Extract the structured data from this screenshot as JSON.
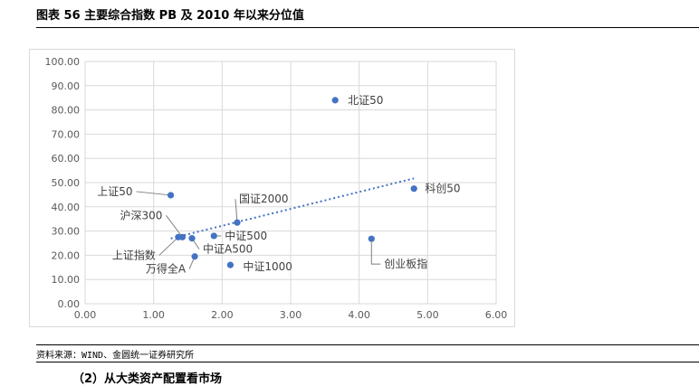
{
  "figure": {
    "title": "图表 56  主要综合指数 PB 及 2010 年以来分位值",
    "source": "资料来源：WIND、金圆统一证券研究所",
    "section": "（2）从大类资产配置看市场"
  },
  "chart_data": {
    "type": "scatter",
    "title": "",
    "xlabel": "",
    "ylabel": "",
    "xlim": [
      0,
      6
    ],
    "ylim": [
      0,
      100
    ],
    "xticks": [
      "0.00",
      "1.00",
      "2.00",
      "3.00",
      "4.00",
      "5.00",
      "6.00"
    ],
    "yticks": [
      "0.00",
      "10.00",
      "20.00",
      "30.00",
      "40.00",
      "50.00",
      "60.00",
      "70.00",
      "80.00",
      "90.00",
      "100.00"
    ],
    "grid": true,
    "trendline": "linear",
    "point_color": "#4472c4",
    "trend_color": "#4472c4",
    "points": [
      {
        "label": "北证50",
        "x": 3.65,
        "y": 84.0
      },
      {
        "label": "科创50",
        "x": 4.8,
        "y": 47.5
      },
      {
        "label": "上证50",
        "x": 1.25,
        "y": 44.8
      },
      {
        "label": "国证2000",
        "x": 2.22,
        "y": 33.5
      },
      {
        "label": "沪深300",
        "x": 1.42,
        "y": 27.5
      },
      {
        "label": "上证指数",
        "x": 1.36,
        "y": 27.5
      },
      {
        "label": "中证500",
        "x": 1.88,
        "y": 28.0
      },
      {
        "label": "中证A500",
        "x": 1.56,
        "y": 27.0
      },
      {
        "label": "万得全A",
        "x": 1.6,
        "y": 19.5
      },
      {
        "label": "中证1000",
        "x": 2.12,
        "y": 16.0
      },
      {
        "label": "创业板指",
        "x": 4.18,
        "y": 26.8
      }
    ]
  }
}
